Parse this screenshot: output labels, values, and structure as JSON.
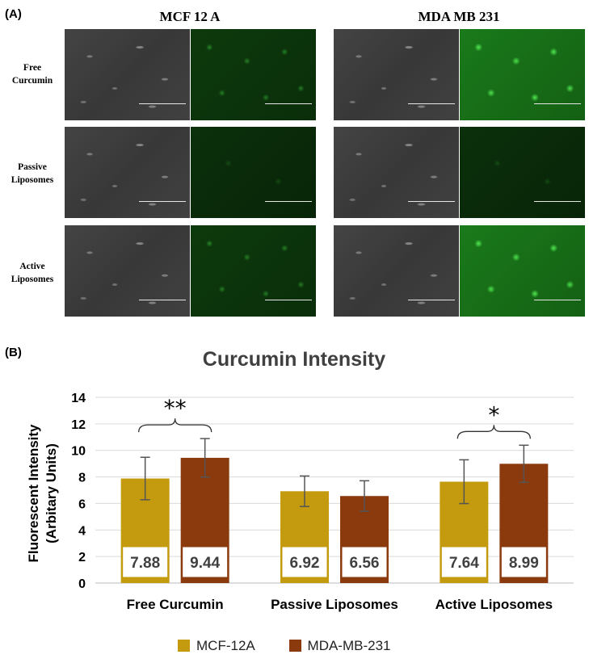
{
  "figure": {
    "panel_a_label": "(A)",
    "panel_b_label": "(B)",
    "columns": [
      "MCF 12 A",
      "MDA MB 231"
    ],
    "rows": [
      {
        "line1": "Free",
        "line2": "Curcumin"
      },
      {
        "line1": "Passive",
        "line2": "Liposomes"
      },
      {
        "line1": "Active",
        "line2": "Liposomes"
      }
    ]
  },
  "chart_data": {
    "type": "bar",
    "title": "Curcumin Intensity",
    "ylabel_line1": "Fluorescent Intensity",
    "ylabel_line2": "(Arbitary Units)",
    "xlabel": "",
    "categories": [
      "Free Curcumin",
      "Passive Liposomes",
      "Active Liposomes"
    ],
    "ylim": [
      0,
      14
    ],
    "yticks": [
      0,
      2,
      4,
      6,
      8,
      10,
      12,
      14
    ],
    "grid": true,
    "legend_position": "bottom",
    "series": [
      {
        "name": "MCF-12A",
        "color": "#c49a0e",
        "values": [
          7.88,
          6.92,
          7.64
        ],
        "error": [
          1.6,
          1.15,
          1.65
        ],
        "labels": [
          "7.88",
          "6.92",
          "7.64"
        ]
      },
      {
        "name": "MDA-MB-231",
        "color": "#8b3a0d",
        "values": [
          9.44,
          6.56,
          8.99
        ],
        "error": [
          1.45,
          1.15,
          1.4
        ],
        "labels": [
          "9.44",
          "6.56",
          "8.99"
        ]
      }
    ],
    "annotations": [
      {
        "category": "Free Curcumin",
        "text": "**"
      },
      {
        "category": "Active Liposomes",
        "text": "*"
      }
    ]
  }
}
